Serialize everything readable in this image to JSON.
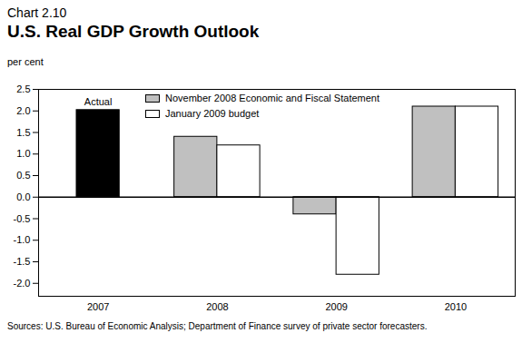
{
  "chart_data": {
    "type": "bar",
    "subtitle": "Chart 2.10",
    "title": "U.S. Real GDP Growth Outlook",
    "y_label": "per cent",
    "categories": [
      "2007",
      "2008",
      "2009",
      "2010"
    ],
    "series": [
      {
        "name": "Actual",
        "color": "#000000",
        "values": [
          2.02,
          null,
          null,
          null
        ]
      },
      {
        "name": "November 2008 Economic and Fiscal Statement",
        "color": "#c0c0c0",
        "values": [
          null,
          1.4,
          -0.4,
          2.1
        ]
      },
      {
        "name": "January 2009 budget",
        "color": "#ffffff",
        "values": [
          null,
          1.2,
          -1.8,
          2.1
        ]
      }
    ],
    "ylim": [
      -2.3,
      2.5
    ],
    "yticks": [
      {
        "value": -2,
        "label": "-2.0"
      },
      {
        "value": -1.5,
        "label": "-1.5"
      },
      {
        "value": -1,
        "label": "-1.0"
      },
      {
        "value": -0.5,
        "label": "-0.5"
      },
      {
        "value": 0,
        "label": "0.0"
      },
      {
        "value": 0.5,
        "label": "0.5"
      },
      {
        "value": 1,
        "label": "1.0"
      },
      {
        "value": 1.5,
        "label": "1.5"
      },
      {
        "value": 2,
        "label": "2.0"
      },
      {
        "value": 2.5,
        "label": "2.5"
      }
    ],
    "grid": false,
    "legend": "top",
    "caption": "Sources: U.S. Bureau of Economic Analysis; Department of Finance survey of private sector forecasters."
  }
}
